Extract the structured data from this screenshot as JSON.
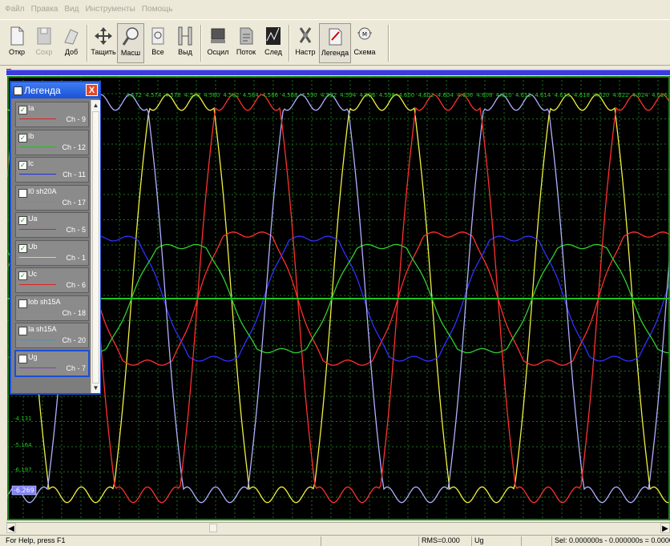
{
  "menu": [
    "Файл",
    "Правка",
    "Вид",
    "Инструменты",
    "Помощь"
  ],
  "toolbar": [
    {
      "label": "Откр",
      "icon": "open-icon",
      "enabled": true
    },
    {
      "label": "Сохр",
      "icon": "save-icon",
      "enabled": false
    },
    {
      "label": "Доб",
      "icon": "add-icon",
      "enabled": true
    },
    {
      "label": "Тащить",
      "icon": "move-icon",
      "enabled": true
    },
    {
      "label": "Масш",
      "icon": "zoom-icon",
      "enabled": true,
      "pressed": true
    },
    {
      "label": "Все",
      "icon": "fit-all-icon",
      "enabled": true
    },
    {
      "label": "Выд",
      "icon": "select-icon",
      "enabled": true
    },
    {
      "label": "Осцил",
      "icon": "oscilloscope-icon",
      "enabled": true
    },
    {
      "label": "Поток",
      "icon": "flow-icon",
      "enabled": true
    },
    {
      "label": "След",
      "icon": "trace-icon",
      "enabled": true
    },
    {
      "label": "Настр",
      "icon": "settings-icon",
      "enabled": true
    },
    {
      "label": "Легенда",
      "icon": "legend-icon",
      "enabled": true,
      "pressed": true
    },
    {
      "label": "Схема",
      "icon": "scheme-icon",
      "enabled": true
    }
  ],
  "legend": {
    "title": "Легенда",
    "close": "X",
    "items": [
      {
        "name": "Ia",
        "channel": "Ch - 9",
        "checked": true,
        "color": "#e02020"
      },
      {
        "name": "Ib",
        "channel": "Ch - 12",
        "checked": true,
        "color": "#20c020"
      },
      {
        "name": "Ic",
        "channel": "Ch - 11",
        "checked": true,
        "color": "#2030e0"
      },
      {
        "name": "I0 sh20A",
        "channel": "Ch - 17",
        "checked": false,
        "color": "#888888"
      },
      {
        "name": "Ua",
        "channel": "Ch - 5",
        "checked": true,
        "color": "#e02020"
      },
      {
        "name": "Ub",
        "channel": "Ch - 1",
        "checked": true,
        "color": "#f0e020"
      },
      {
        "name": "Uc",
        "channel": "Ch - 6",
        "checked": true,
        "color": "#e02020"
      },
      {
        "name": "Iob sh15A",
        "channel": "Ch - 18",
        "checked": false,
        "color": "#888888"
      },
      {
        "name": "Ia sh15A",
        "channel": "Ch - 20",
        "checked": false,
        "color": "#20a0e0"
      },
      {
        "name": "Ug",
        "channel": "Ch - 7",
        "checked": false,
        "color": "#8040c0",
        "selected": true
      }
    ]
  },
  "plot": {
    "x_ticks": [
      "4.572",
      "4.574",
      "4.576",
      "4.578",
      "4.580",
      "4.582",
      "4.584",
      "4.586",
      "4.588",
      "4.590",
      "4.592",
      "4.594",
      "4.596",
      "4.598",
      "4.600",
      "4.602",
      "4.604",
      "4.606",
      "4.608",
      "4.610",
      "4.612",
      "4.614",
      "4.616",
      "4.618",
      "4.620",
      "4.622",
      "4.624",
      "4.626"
    ],
    "y_ticks": [
      "-4.131",
      "-5.164",
      "-6.197"
    ],
    "cursor_label": "-6.269",
    "colors": {
      "background": "#000000",
      "grid": "#1f6f1f",
      "frame": "#21b021",
      "axis": "#20c020"
    },
    "curves": [
      {
        "name": "Ub",
        "color": "#f0f040"
      },
      {
        "name": "Ia",
        "color": "#ff3030"
      },
      {
        "name": "Ic",
        "color": "#3030ff"
      },
      {
        "name": "Ib",
        "color": "#30d030"
      },
      {
        "name": "Ug",
        "color": "#b0b0ff"
      }
    ]
  },
  "statusbar": {
    "help": "For Help, press F1",
    "rms": "RMS=0.000",
    "channel": "Ug",
    "sel": "Sel: 0.000000s - 0.000000s = 0.000000s"
  }
}
